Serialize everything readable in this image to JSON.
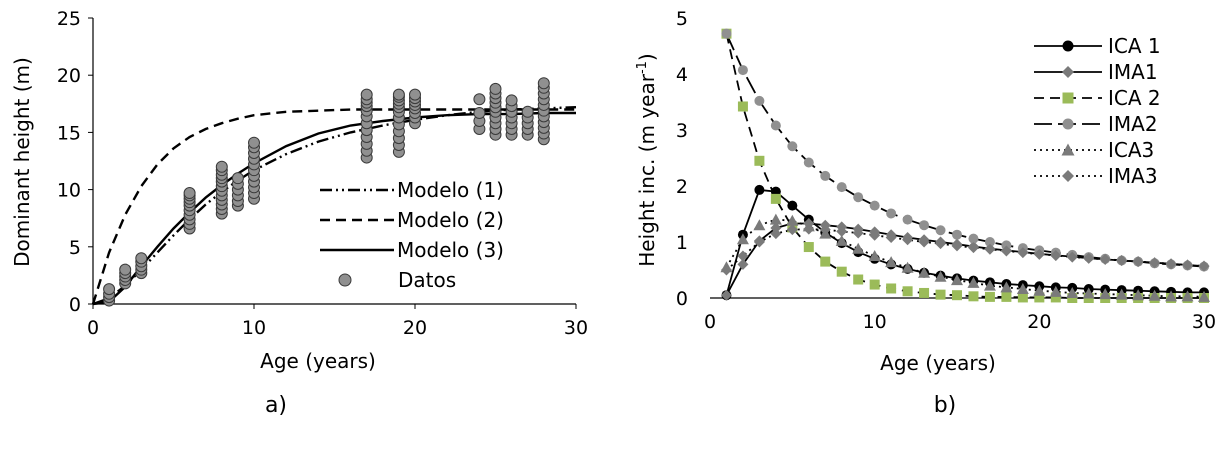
{
  "chart_data": [
    {
      "type": "line",
      "panel_label": "a)",
      "xlabel": "Age (years)",
      "ylabel": "Dominant height (m)",
      "xlim": [
        0,
        30
      ],
      "ylim": [
        0,
        25
      ],
      "xticks": [
        0,
        10,
        20,
        30
      ],
      "yticks": [
        0,
        5,
        10,
        15,
        20,
        25
      ],
      "grid": false,
      "legend_position": "center-right",
      "series": [
        {
          "name": "Modelo (1)",
          "style": "dash-dot-dot",
          "color": "#000000",
          "x": [
            0,
            1,
            2,
            3,
            4,
            5,
            6,
            7,
            8,
            9,
            10,
            12,
            14,
            16,
            18,
            20,
            22,
            24,
            26,
            28,
            30
          ],
          "y": [
            0,
            0.5,
            1.6,
            3.0,
            4.5,
            6.0,
            7.4,
            8.7,
            9.8,
            10.8,
            11.7,
            13.1,
            14.2,
            15.0,
            15.6,
            16.1,
            16.5,
            16.8,
            17.0,
            17.1,
            17.2
          ]
        },
        {
          "name": "Modelo (2)",
          "style": "dashed",
          "color": "#000000",
          "x": [
            0,
            1,
            2,
            3,
            4,
            5,
            6,
            7,
            8,
            9,
            10,
            12,
            14,
            16,
            18,
            20,
            22,
            24,
            26,
            28,
            30
          ],
          "y": [
            0,
            4.5,
            7.8,
            10.3,
            12.2,
            13.6,
            14.6,
            15.3,
            15.8,
            16.2,
            16.5,
            16.8,
            16.9,
            17.0,
            17.0,
            17.0,
            17.0,
            17.0,
            17.0,
            17.0,
            17.0
          ]
        },
        {
          "name": "Modelo (3)",
          "style": "solid",
          "color": "#000000",
          "x": [
            0,
            1,
            2,
            3,
            4,
            5,
            6,
            7,
            8,
            9,
            10,
            12,
            14,
            16,
            18,
            20,
            22,
            24,
            26,
            28,
            30
          ],
          "y": [
            0,
            0.2,
            1.5,
            3.3,
            5.0,
            6.6,
            8.0,
            9.3,
            10.4,
            11.4,
            12.3,
            13.8,
            14.9,
            15.6,
            16.0,
            16.3,
            16.5,
            16.6,
            16.6,
            16.7,
            16.7
          ]
        },
        {
          "name": "Datos",
          "style": "markers",
          "marker": "circle",
          "color": "#909090",
          "x": [
            1,
            1,
            1,
            1,
            2,
            2,
            2,
            2,
            2,
            3,
            3,
            3,
            3,
            3,
            6,
            6,
            6,
            6,
            6,
            6,
            6,
            6,
            6,
            6,
            8,
            8,
            8,
            8,
            8,
            8,
            8,
            8,
            8,
            8,
            8,
            8,
            9,
            9,
            9,
            9,
            9,
            9,
            10,
            10,
            10,
            10,
            10,
            10,
            10,
            10,
            10,
            10,
            10,
            17,
            17,
            17,
            17,
            17,
            17,
            17,
            17,
            17,
            17,
            17,
            17,
            19,
            19,
            19,
            19,
            19,
            19,
            19,
            19,
            19,
            19,
            19,
            19,
            20,
            20,
            20,
            20,
            20,
            20,
            20,
            20,
            24,
            24,
            24,
            24,
            25,
            25,
            25,
            25,
            25,
            25,
            25,
            25,
            25,
            25,
            26,
            26,
            26,
            26,
            26,
            26,
            26,
            27,
            27,
            27,
            27,
            27,
            28,
            28,
            28,
            28,
            28,
            28,
            28,
            28,
            28,
            28,
            28
          ],
          "y": [
            0.3,
            0.6,
            0.9,
            1.3,
            1.8,
            2.1,
            2.4,
            2.7,
            3.0,
            2.7,
            3.0,
            3.3,
            3.7,
            4.0,
            6.6,
            7.0,
            7.4,
            7.8,
            8.2,
            8.6,
            8.9,
            9.2,
            9.5,
            9.7,
            7.9,
            8.3,
            8.7,
            9.1,
            9.5,
            9.9,
            10.3,
            10.7,
            11.0,
            11.3,
            11.7,
            12.0,
            8.6,
            9.0,
            9.5,
            10.0,
            10.5,
            11.0,
            9.2,
            9.7,
            10.2,
            10.7,
            11.2,
            11.7,
            12.2,
            12.7,
            13.2,
            13.7,
            14.1,
            12.8,
            13.4,
            14.0,
            14.6,
            15.2,
            15.8,
            16.4,
            16.9,
            17.3,
            17.6,
            17.9,
            18.3,
            13.3,
            13.9,
            14.5,
            15.1,
            15.7,
            16.3,
            16.8,
            17.2,
            17.5,
            17.8,
            18.1,
            18.3,
            15.8,
            16.3,
            16.7,
            17.1,
            17.4,
            17.7,
            18.0,
            18.3,
            15.3,
            16.0,
            16.7,
            17.9,
            14.8,
            15.3,
            15.8,
            16.3,
            16.8,
            17.2,
            17.6,
            18.0,
            18.4,
            18.8,
            14.8,
            15.3,
            15.8,
            16.3,
            16.8,
            17.3,
            17.8,
            14.8,
            15.3,
            15.8,
            16.3,
            16.8,
            14.4,
            14.9,
            15.4,
            15.9,
            16.4,
            16.9,
            17.4,
            17.9,
            18.4,
            18.9,
            19.3
          ]
        }
      ]
    },
    {
      "type": "line",
      "panel_label": "b)",
      "xlabel": "Age (years)",
      "ylabel": "Height inc. (m year-1)",
      "ylabel_main": "Height inc. (m year",
      "ylabel_sup": "-1",
      "ylabel_close": ")",
      "xlim": [
        0,
        30
      ],
      "ylim": [
        0,
        5
      ],
      "xticks": [
        0,
        10,
        20,
        30
      ],
      "yticks": [
        0,
        1,
        2,
        3,
        4,
        5
      ],
      "grid": false,
      "legend_position": "top-right",
      "series": [
        {
          "name": "ICA 1",
          "style": "solid",
          "marker": "circle",
          "color": "#000000",
          "x": [
            1,
            2,
            3,
            4,
            5,
            6,
            7,
            8,
            9,
            10,
            11,
            12,
            13,
            14,
            15,
            16,
            17,
            18,
            19,
            20,
            21,
            22,
            23,
            24,
            25,
            26,
            27,
            28,
            29,
            30
          ],
          "y": [
            0.05,
            1.13,
            1.93,
            1.9,
            1.65,
            1.4,
            1.17,
            0.98,
            0.82,
            0.7,
            0.6,
            0.52,
            0.45,
            0.4,
            0.35,
            0.31,
            0.28,
            0.25,
            0.23,
            0.21,
            0.19,
            0.18,
            0.16,
            0.15,
            0.14,
            0.13,
            0.12,
            0.11,
            0.1,
            0.1
          ]
        },
        {
          "name": "IMA1",
          "style": "solid",
          "marker": "diamond",
          "color": "#7a7a7a",
          "x": [
            1,
            2,
            3,
            4,
            5,
            6,
            7,
            8,
            9,
            10,
            11,
            12,
            13,
            14,
            15,
            16,
            17,
            18,
            19,
            20,
            21,
            22,
            23,
            24,
            25,
            26,
            27,
            28,
            29,
            30
          ],
          "y": [
            0.05,
            0.6,
            1.02,
            1.25,
            1.33,
            1.33,
            1.3,
            1.27,
            1.23,
            1.18,
            1.13,
            1.08,
            1.04,
            1.0,
            0.96,
            0.92,
            0.88,
            0.85,
            0.82,
            0.79,
            0.76,
            0.74,
            0.71,
            0.69,
            0.67,
            0.65,
            0.63,
            0.61,
            0.59,
            0.57
          ]
        },
        {
          "name": "ICA 2",
          "style": "dashed",
          "marker": "square",
          "color": "#9bbb59",
          "x": [
            1,
            2,
            3,
            4,
            5,
            6,
            7,
            8,
            9,
            10,
            11,
            12,
            13,
            14,
            15,
            16,
            17,
            18,
            19,
            20,
            21,
            22,
            23,
            24,
            25,
            26,
            27,
            28,
            29,
            30
          ],
          "y": [
            4.72,
            3.42,
            2.45,
            1.77,
            1.26,
            0.91,
            0.65,
            0.47,
            0.33,
            0.24,
            0.17,
            0.12,
            0.09,
            0.06,
            0.05,
            0.03,
            0.02,
            0.02,
            0.01,
            0.01,
            0.01,
            0.0,
            0.0,
            0.0,
            0.0,
            0.0,
            0.0,
            0.0,
            0.0,
            0.0
          ]
        },
        {
          "name": "IMA2",
          "style": "long-dash",
          "marker": "circle",
          "color": "#909090",
          "x": [
            1,
            2,
            3,
            4,
            5,
            6,
            7,
            8,
            9,
            10,
            11,
            12,
            13,
            14,
            15,
            16,
            17,
            18,
            19,
            20,
            21,
            22,
            23,
            24,
            25,
            26,
            27,
            28,
            29,
            30
          ],
          "y": [
            4.72,
            4.07,
            3.52,
            3.08,
            2.71,
            2.42,
            2.18,
            1.98,
            1.8,
            1.65,
            1.51,
            1.4,
            1.3,
            1.21,
            1.13,
            1.06,
            1.0,
            0.94,
            0.89,
            0.85,
            0.81,
            0.77,
            0.73,
            0.7,
            0.67,
            0.65,
            0.62,
            0.6,
            0.58,
            0.56
          ]
        },
        {
          "name": "ICA3",
          "style": "dotted",
          "marker": "triangle",
          "color": "#7a7a7a",
          "x": [
            1,
            2,
            3,
            4,
            5,
            6,
            7,
            8,
            9,
            10,
            11,
            12,
            13,
            14,
            15,
            16,
            17,
            18,
            19,
            20,
            21,
            22,
            23,
            24,
            25,
            26,
            27,
            28,
            29,
            30
          ],
          "y": [
            0.55,
            1.05,
            1.3,
            1.4,
            1.38,
            1.28,
            1.15,
            1.02,
            0.88,
            0.75,
            0.64,
            0.54,
            0.45,
            0.38,
            0.32,
            0.27,
            0.22,
            0.19,
            0.16,
            0.13,
            0.11,
            0.09,
            0.08,
            0.07,
            0.06,
            0.05,
            0.04,
            0.03,
            0.03,
            0.02
          ]
        },
        {
          "name": "IMA3",
          "style": "dotted",
          "marker": "diamond",
          "color": "#7a7a7a",
          "x": [
            1,
            2,
            3,
            4,
            5,
            6,
            7,
            8,
            9,
            10,
            11,
            12,
            13,
            14,
            15,
            16,
            17,
            18,
            19,
            20,
            21,
            22,
            23,
            24,
            25,
            26,
            27,
            28,
            29,
            30
          ],
          "y": [
            0.5,
            0.75,
            1.0,
            1.15,
            1.22,
            1.23,
            1.22,
            1.19,
            1.16,
            1.12,
            1.08,
            1.04,
            1.0,
            0.97,
            0.93,
            0.9,
            0.87,
            0.84,
            0.81,
            0.78,
            0.76,
            0.73,
            0.71,
            0.69,
            0.67,
            0.65,
            0.63,
            0.61,
            0.59,
            0.57
          ]
        }
      ]
    }
  ]
}
